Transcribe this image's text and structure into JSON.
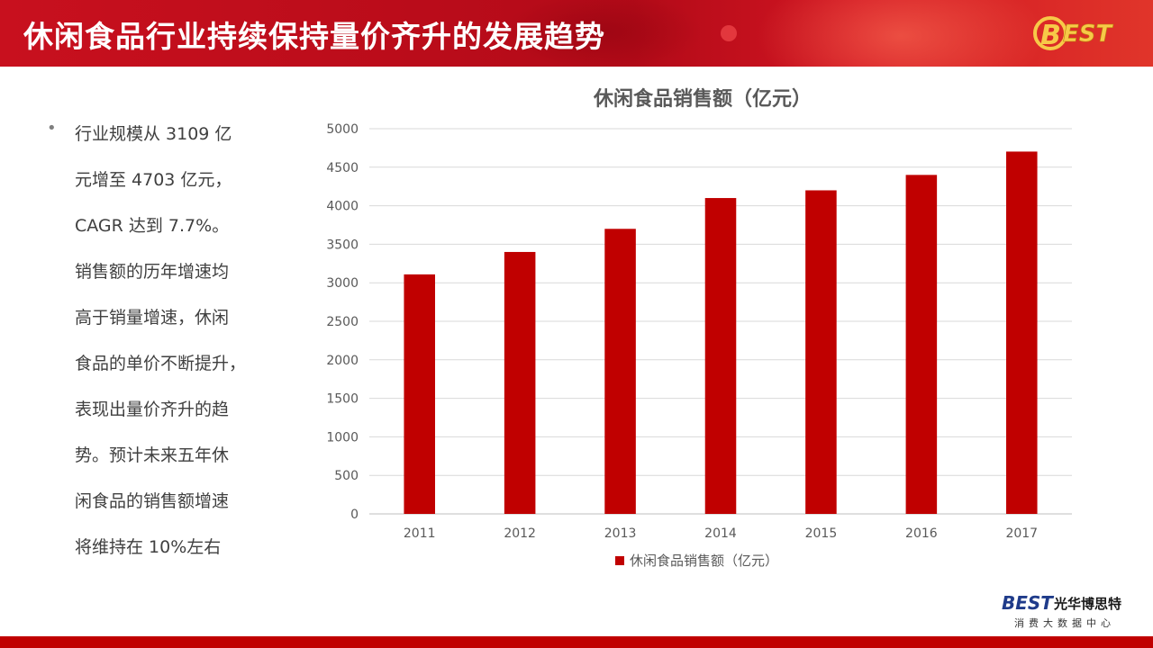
{
  "header": {
    "title": "休闲食品行业持续保持量价齐升的发展趋势",
    "logo": "BEST"
  },
  "bullet": {
    "lines": [
      "行业规模从 3109 亿",
      "元增至 4703 亿元，",
      "CAGR 达到 7.7%。",
      "销售额的历年增速均",
      "高于销量增速，休闲",
      "食品的单价不断提升，",
      "表现出量价齐升的趋",
      "势。预计未来五年休",
      "闲食品的销售额增速",
      "将维持在 10%左右"
    ]
  },
  "footer": {
    "logo_text": "BEST",
    "company": "光华博思特",
    "subtitle": "消费大数据中心"
  },
  "colors": {
    "header_red": "#c8101e",
    "bar_red": "#c00000",
    "logo_blue": "#1f3b8a"
  },
  "chart_data": {
    "type": "bar",
    "title": "休闲食品销售额（亿元）",
    "categories": [
      "2011",
      "2012",
      "2013",
      "2014",
      "2015",
      "2016",
      "2017"
    ],
    "series": [
      {
        "name": "休闲食品销售额（亿元）",
        "values": [
          3109,
          3400,
          3700,
          4100,
          4200,
          4400,
          4703
        ]
      }
    ],
    "ylim": [
      0,
      5000
    ],
    "yticks": [
      "0",
      "500",
      "1000",
      "1500",
      "2000",
      "2500",
      "3000",
      "3500",
      "4000",
      "4500",
      "5000"
    ],
    "grid": true,
    "legend": "bottom",
    "xlabel": "",
    "ylabel": ""
  }
}
